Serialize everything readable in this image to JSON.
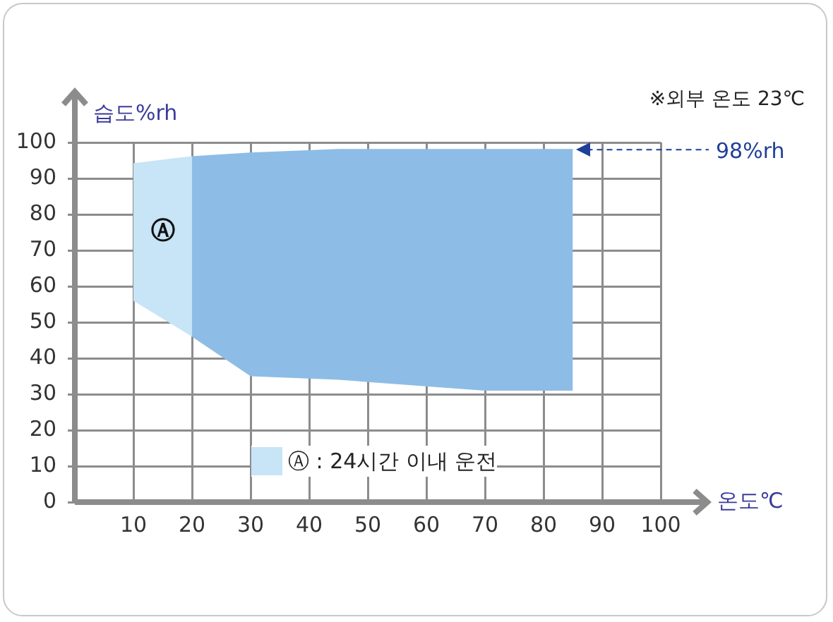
{
  "chart_data": {
    "type": "line",
    "xlabel": "온도℃",
    "ylabel": "습도%rh",
    "xlim": [
      0,
      100
    ],
    "xticks": [
      10,
      20,
      30,
      40,
      50,
      60,
      70,
      80,
      90,
      100
    ],
    "ylim": [
      0,
      100
    ],
    "yticks": [
      0,
      10,
      20,
      30,
      40,
      50,
      60,
      70,
      80,
      90,
      100
    ],
    "grid": true,
    "legend": "bottom",
    "series": [
      {
        "name": "Ⓐ : 24시간 이내 운전",
        "color": "#c8e4f7",
        "x": [
          10,
          20
        ],
        "values": [
          94,
          96
        ],
        "lower": [
          56,
          46
        ],
        "upper": [
          94,
          96
        ]
      },
      {
        "color": "#8dbde6",
        "x": [
          20,
          30,
          45,
          70,
          85
        ],
        "values": [
          96,
          97,
          98,
          98,
          98
        ],
        "lower": [
          46,
          35,
          34,
          31,
          31
        ],
        "upper": [
          96,
          97,
          98,
          98,
          98
        ]
      }
    ],
    "ref_lines": [
      {
        "axis": "y",
        "value": 98,
        "label": "98%rh",
        "color": "#1f3f99",
        "line_style": "dashed"
      }
    ],
    "annotations": [
      "※외부 온도 23℃",
      "Ⓐ"
    ]
  }
}
